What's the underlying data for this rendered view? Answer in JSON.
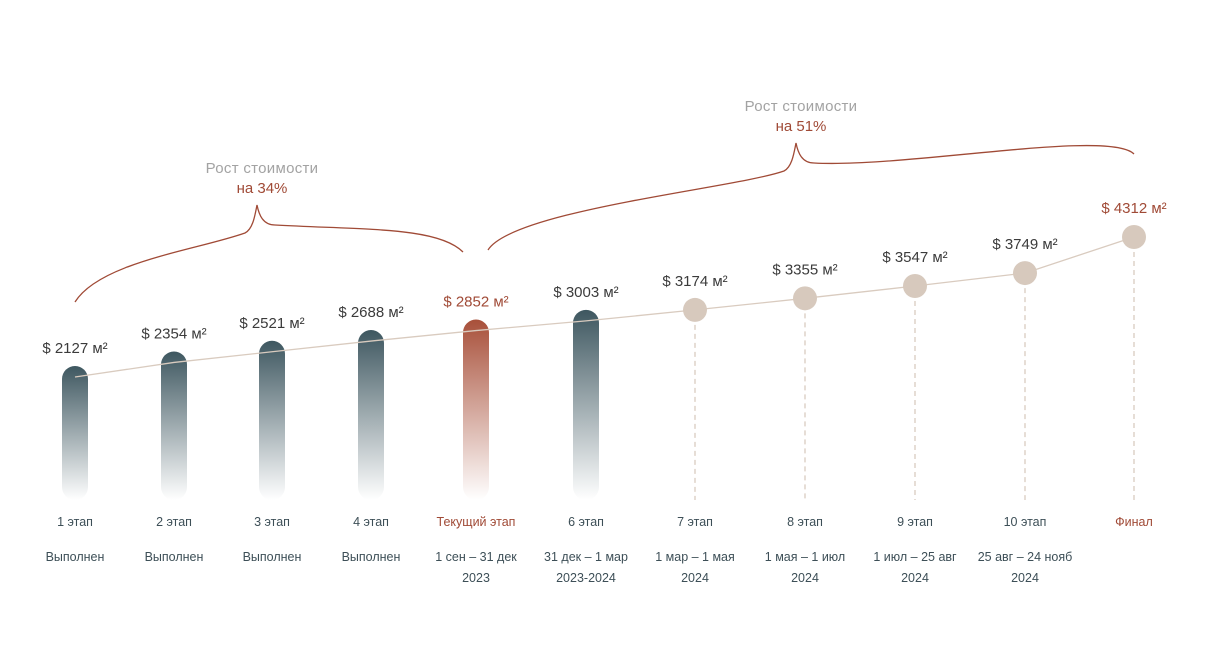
{
  "colors": {
    "completed": "#3e5760",
    "current": "#a8503a",
    "future": "#d7c9bd",
    "accent": "#a04a36",
    "line": "#d9cbbf"
  },
  "chart_data": {
    "type": "line",
    "unit": "м²",
    "currency": "$",
    "categories": [
      "1 этап",
      "2 этап",
      "3 этап",
      "4 этап",
      "Текущий этап",
      "6 этап",
      "7 этап",
      "8 этап",
      "9 этап",
      "10 этап",
      "Финал"
    ],
    "values": [
      2127,
      2354,
      2521,
      2688,
      2852,
      3003,
      3174,
      3355,
      3547,
      3749,
      4312
    ],
    "price_labels": [
      "$ 2127 м²",
      "$ 2354 м²",
      "$ 2521 м²",
      "$ 2688 м²",
      "$ 2852 м²",
      "$ 3003 м²",
      "$ 3174 м²",
      "$ 3355 м²",
      "$ 3547 м²",
      "$ 3749 м²",
      "$ 4312 м²"
    ],
    "kinds": [
      "completed",
      "completed",
      "completed",
      "completed",
      "current",
      "completed",
      "future",
      "future",
      "future",
      "future",
      "final"
    ],
    "status_lines": [
      [
        "Выполнен"
      ],
      [
        "Выполнен"
      ],
      [
        "Выполнен"
      ],
      [
        "Выполнен"
      ],
      [
        "1 сен – 31 дек",
        "2023"
      ],
      [
        "31 дек – 1 мар",
        "2023-2024"
      ],
      [
        "1 мар – 1 мая",
        "2024"
      ],
      [
        "1 мая – 1 июл",
        "2024"
      ],
      [
        "1 июл – 25 авг",
        "2024"
      ],
      [
        "25 авг – 24 нояб",
        "2024"
      ],
      []
    ],
    "growth_brackets": [
      {
        "from_index": 0,
        "to_index": 4,
        "title": "Рост стоимости",
        "value": "на 34%"
      },
      {
        "from_index": 4,
        "to_index": 10,
        "title": "Рост стоимости",
        "value": "на 51%"
      }
    ]
  }
}
